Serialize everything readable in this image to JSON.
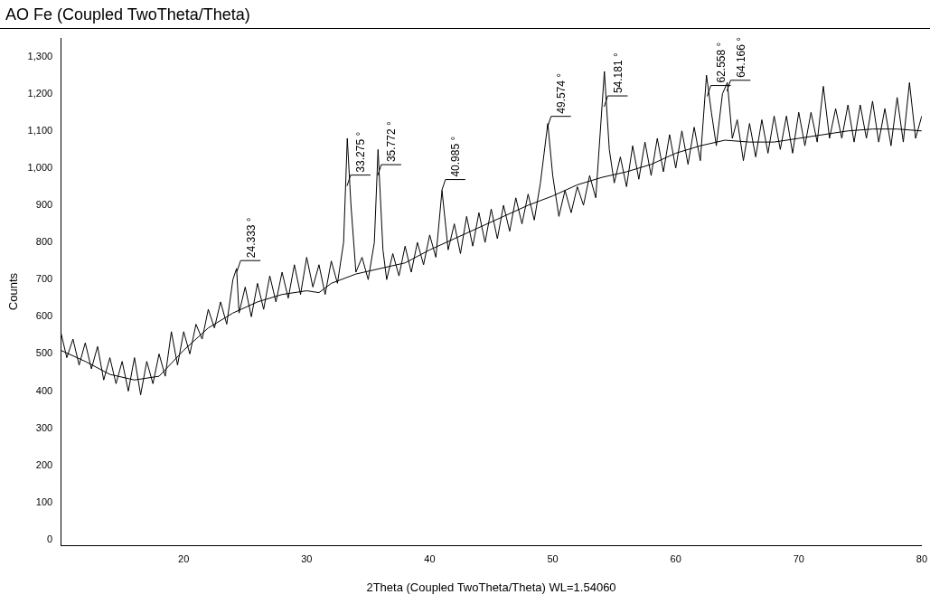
{
  "chart_data": {
    "type": "line",
    "title": "AO Fe (Coupled TwoTheta/Theta)",
    "xlabel": "2Theta (Coupled TwoTheta/Theta) WL=1.54060",
    "ylabel": "Counts",
    "xlim": [
      10,
      80
    ],
    "xticks": [
      20,
      30,
      40,
      50,
      60,
      70,
      80
    ],
    "ylim": [
      -15,
      1350
    ],
    "yticks": [
      0,
      100,
      200,
      300,
      400,
      500,
      600,
      700,
      800,
      900,
      {
        "value": 1000,
        "label": "1,000"
      },
      {
        "value": 1100,
        "label": "1,100"
      },
      {
        "value": 1200,
        "label": "1,200"
      },
      {
        "value": 1300,
        "label": "1,300"
      }
    ],
    "grid": false,
    "legend": false,
    "marker": "none",
    "line_style": "solid",
    "series": [
      {
        "color": "#000000",
        "x": [
          10,
          10.5,
          11,
          11.5,
          12,
          12.5,
          13,
          13.5,
          14,
          14.5,
          15,
          15.5,
          16,
          16.5,
          17,
          17.5,
          18,
          18.5,
          19,
          19.5,
          20,
          20.5,
          21,
          21.5,
          22,
          22.5,
          23,
          23.5,
          24,
          24.3,
          24.5,
          25,
          25.5,
          26,
          26.5,
          27,
          27.5,
          28,
          28.5,
          29,
          29.5,
          30,
          30.5,
          31,
          31.5,
          32,
          32.5,
          33,
          33.3,
          33.6,
          34,
          34.5,
          35,
          35.5,
          35.8,
          36.2,
          36.5,
          37,
          37.5,
          38,
          38.5,
          39,
          39.5,
          40,
          40.5,
          41,
          41.5,
          42,
          42.5,
          43,
          43.5,
          44,
          44.5,
          45,
          45.5,
          46,
          46.5,
          47,
          47.5,
          48,
          48.5,
          49,
          49.6,
          50,
          50.5,
          51,
          51.5,
          52,
          52.5,
          53,
          53.5,
          54.2,
          54.6,
          55,
          55.5,
          56,
          56.5,
          57,
          57.5,
          58,
          58.5,
          59,
          59.5,
          60,
          60.5,
          61,
          61.5,
          62,
          62.5,
          62.9,
          63.3,
          63.8,
          64.2,
          64.6,
          65,
          65.5,
          66,
          66.5,
          67,
          67.5,
          68,
          68.5,
          69,
          69.5,
          70,
          70.5,
          71,
          71.5,
          72,
          72.5,
          73,
          73.5,
          74,
          74.5,
          75,
          75.5,
          76,
          76.5,
          77,
          77.5,
          78,
          78.5,
          79,
          79.5,
          80
        ],
        "values": [
          560,
          490,
          540,
          470,
          530,
          460,
          520,
          430,
          490,
          420,
          480,
          400,
          490,
          390,
          480,
          420,
          500,
          440,
          560,
          470,
          560,
          500,
          580,
          540,
          620,
          570,
          640,
          580,
          700,
          730,
          610,
          680,
          600,
          690,
          620,
          710,
          640,
          720,
          650,
          740,
          660,
          760,
          680,
          740,
          660,
          750,
          690,
          800,
          1080,
          900,
          720,
          760,
          700,
          800,
          1050,
          780,
          700,
          770,
          710,
          790,
          720,
          800,
          740,
          820,
          760,
          940,
          780,
          850,
          770,
          870,
          790,
          880,
          800,
          890,
          810,
          900,
          830,
          920,
          850,
          930,
          860,
          960,
          1120,
          980,
          870,
          940,
          880,
          950,
          900,
          980,
          920,
          1260,
          1050,
          960,
          1030,
          950,
          1060,
          970,
          1070,
          980,
          1080,
          990,
          1090,
          1000,
          1100,
          1010,
          1110,
          1020,
          1250,
          1150,
          1060,
          1200,
          1230,
          1080,
          1130,
          1020,
          1120,
          1030,
          1130,
          1040,
          1140,
          1050,
          1140,
          1040,
          1150,
          1060,
          1150,
          1070,
          1220,
          1080,
          1160,
          1080,
          1170,
          1070,
          1170,
          1080,
          1180,
          1070,
          1160,
          1060,
          1190,
          1070,
          1230,
          1080,
          1140
        ]
      },
      {
        "color": "#000000",
        "x": [
          10,
          12,
          14,
          16,
          18,
          20,
          22,
          24,
          26,
          28,
          30,
          31,
          32,
          34,
          36,
          38,
          40,
          42,
          44,
          46,
          48,
          50,
          52,
          54,
          56,
          58,
          60,
          62,
          64,
          66,
          68,
          70,
          72,
          74,
          76,
          78,
          80
        ],
        "values": [
          510,
          480,
          445,
          430,
          440,
          510,
          570,
          610,
          640,
          660,
          670,
          665,
          690,
          715,
          730,
          745,
          780,
          810,
          840,
          870,
          900,
          925,
          955,
          975,
          990,
          1010,
          1040,
          1060,
          1075,
          1070,
          1070,
          1080,
          1090,
          1100,
          1105,
          1105,
          1100
        ]
      }
    ],
    "annotations": [
      {
        "text": "24.333 °",
        "x": 24.333,
        "y": 722
      },
      {
        "text": "33.275 °",
        "x": 33.275,
        "y": 952
      },
      {
        "text": "35.772 °",
        "x": 35.772,
        "y": 980
      },
      {
        "text": "40.985 °",
        "x": 40.985,
        "y": 940
      },
      {
        "text": "49.574 °",
        "x": 49.574,
        "y": 1110
      },
      {
        "text": "54.181 °",
        "x": 54.181,
        "y": 1165
      },
      {
        "text": "62.558 °",
        "x": 62.558,
        "y": 1193
      },
      {
        "text": "64.166 °",
        "x": 64.166,
        "y": 1207
      }
    ]
  }
}
